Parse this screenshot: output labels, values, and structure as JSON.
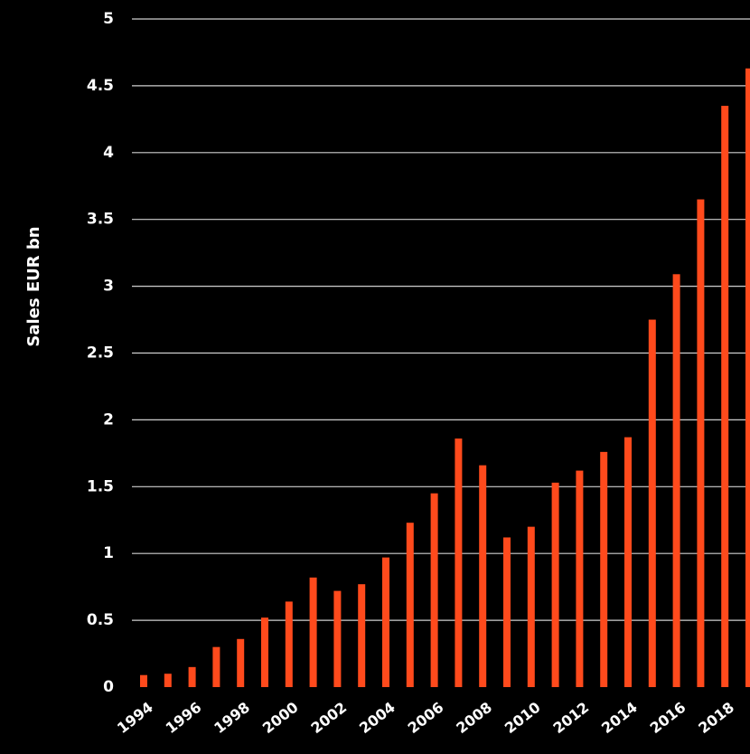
{
  "chart_data": {
    "type": "bar",
    "title": "",
    "xlabel": "",
    "ylabel": "Sales EUR bn",
    "ylim": [
      0,
      5
    ],
    "yticks": [
      "0",
      "0.5",
      "1",
      "1.5",
      "2",
      "2.5",
      "3",
      "3.5",
      "4",
      "4.5",
      "5"
    ],
    "grid": true,
    "categories": [
      "1994",
      "1995",
      "1996",
      "1997",
      "1998",
      "1999",
      "2000",
      "2001",
      "2002",
      "2003",
      "2004",
      "2005",
      "2006",
      "2007",
      "2008",
      "2009",
      "2010",
      "2011",
      "2012",
      "2013",
      "2014",
      "2015",
      "2016",
      "2017",
      "2018",
      "2019"
    ],
    "xtick_labels": [
      "1994",
      "1996",
      "1998",
      "2000",
      "2002",
      "2004",
      "2006",
      "2008",
      "2010",
      "2012",
      "2014",
      "2016",
      "2018"
    ],
    "values": [
      0.09,
      0.1,
      0.15,
      0.3,
      0.36,
      0.52,
      0.64,
      0.82,
      0.72,
      0.77,
      0.97,
      1.23,
      1.45,
      1.86,
      1.66,
      1.12,
      1.2,
      1.53,
      1.62,
      1.76,
      1.87,
      2.75,
      3.09,
      3.65,
      4.35,
      4.63
    ],
    "colors": {
      "bar": "#ff4a1c",
      "background": "#000000",
      "grid": "#cfcfcf",
      "text": "#ffffff"
    }
  }
}
